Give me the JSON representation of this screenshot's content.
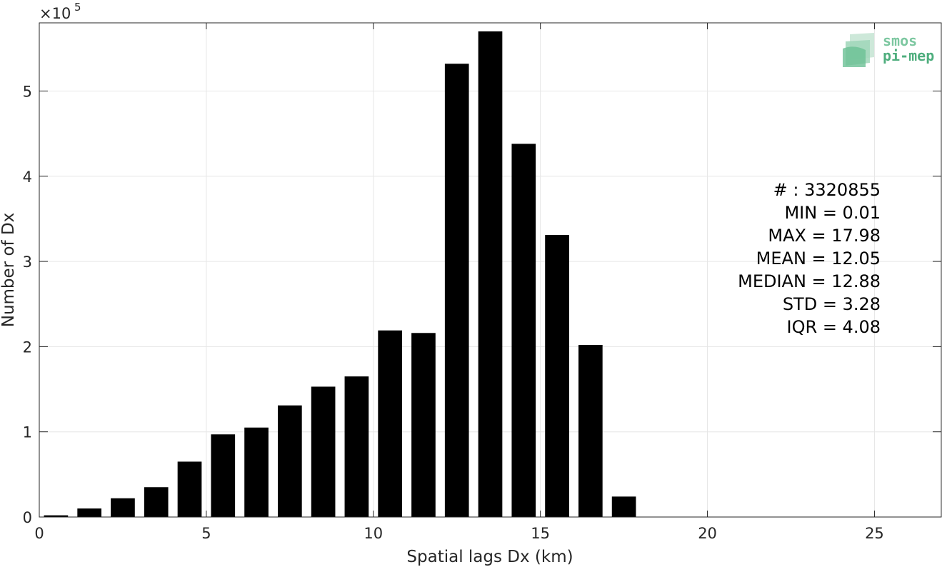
{
  "chart_data": {
    "type": "bar",
    "xlabel": "Spatial lags Dx (km)",
    "ylabel": "Number of Dx",
    "y_exponent_base": "×10",
    "y_exponent_power": "5",
    "xlim": [
      0,
      27
    ],
    "ylim": [
      0,
      580000
    ],
    "x_ticks": [
      0,
      5,
      10,
      15,
      20,
      25
    ],
    "y_ticks": [
      0,
      100000,
      200000,
      300000,
      400000,
      500000
    ],
    "y_tick_labels": [
      "0",
      "1",
      "2",
      "3",
      "4",
      "5"
    ],
    "grid": true,
    "bin_width": 1,
    "bar_fraction": 0.72,
    "x": [
      0.5,
      1.5,
      2.5,
      3.5,
      4.5,
      5.5,
      6.5,
      7.5,
      8.5,
      9.5,
      10.5,
      11.5,
      12.5,
      13.5,
      14.5,
      15.5,
      16.5,
      17.5
    ],
    "values": [
      2000,
      10000,
      22000,
      35000,
      65000,
      97000,
      105000,
      131000,
      153000,
      165000,
      219000,
      216000,
      532000,
      570000,
      438000,
      331000,
      202000,
      24000
    ],
    "bar_color": "#000000",
    "stats": [
      "# : 3320855",
      "MIN = 0.01",
      "MAX =  17.98",
      "MEAN = 12.05",
      "MEDIAN = 12.88",
      "STD = 3.28",
      "IQR = 4.08"
    ]
  },
  "logo": {
    "line1": "smos",
    "line2": "pi-mep",
    "color1": "#7cc7a0",
    "color2": "#4fae7e"
  }
}
